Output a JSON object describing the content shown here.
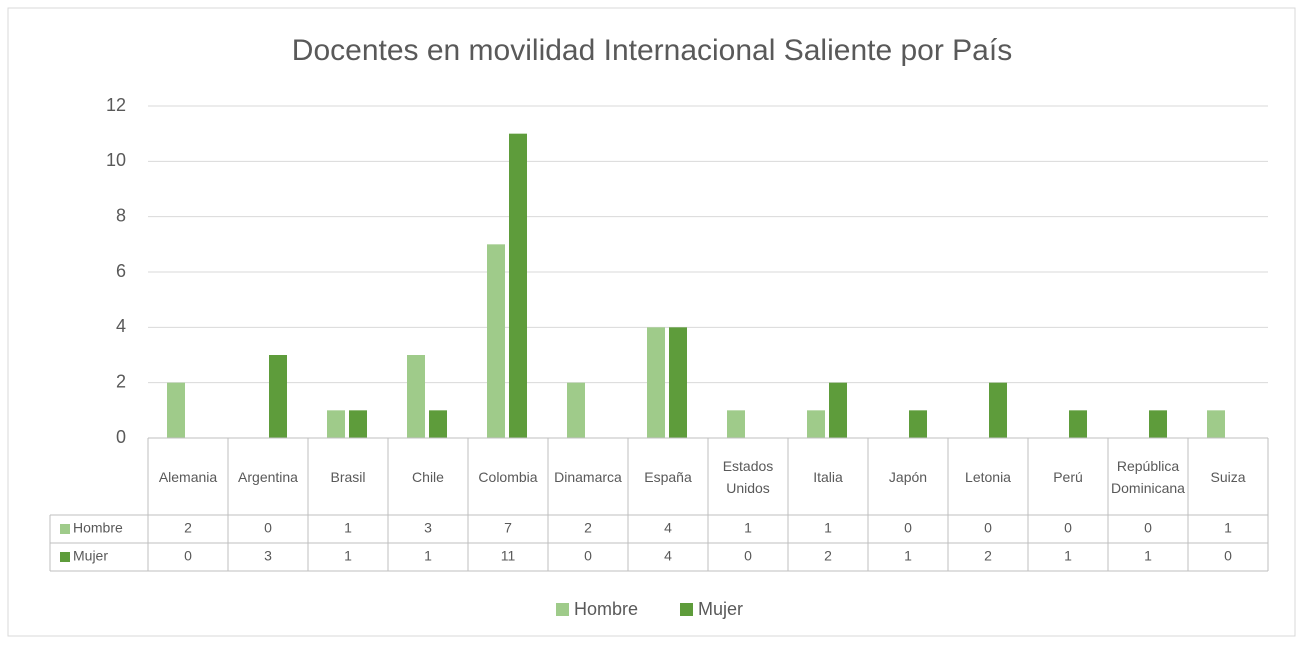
{
  "chart_data": {
    "type": "bar",
    "title": "Docentes en movilidad Internacional Saliente por País",
    "categories": [
      "Alemania",
      "Argentina",
      "Brasil",
      "Chile",
      "Colombia",
      "Dinamarca",
      "España",
      "Estados Unidos",
      "Italia",
      "Japón",
      "Letonia",
      "Perú",
      "República Dominicana",
      "Suiza"
    ],
    "series": [
      {
        "name": "Hombre",
        "color": "#9fcb8a",
        "values": [
          2,
          0,
          1,
          3,
          7,
          2,
          4,
          1,
          1,
          0,
          0,
          0,
          0,
          1
        ]
      },
      {
        "name": "Mujer",
        "color": "#5e9c3b",
        "values": [
          0,
          3,
          1,
          1,
          11,
          0,
          4,
          0,
          2,
          1,
          2,
          1,
          1,
          0
        ]
      }
    ],
    "ylim": [
      0,
      12
    ],
    "yticks": [
      0,
      2,
      4,
      6,
      8,
      10,
      12
    ],
    "grid": true,
    "legend": "bottom"
  }
}
